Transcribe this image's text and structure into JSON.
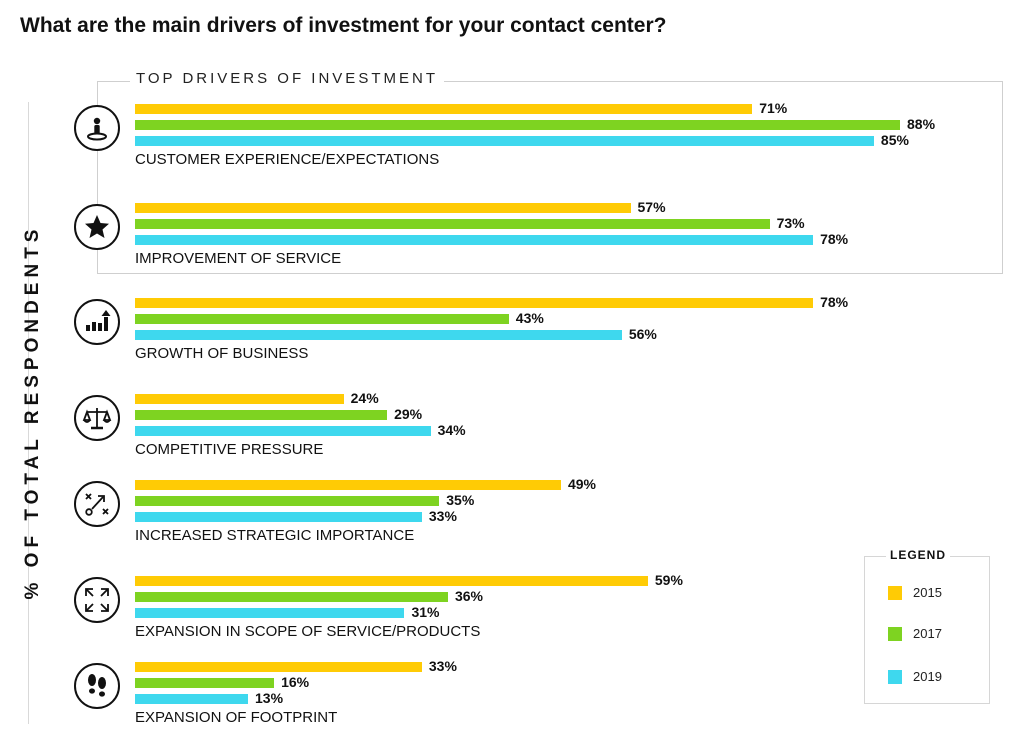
{
  "title": "What are the main drivers of investment for your contact center?",
  "highlight_box_label": "TOP DRIVERS OF INVESTMENT",
  "legend": {
    "title": "LEGEND",
    "items": [
      {
        "label": "2015",
        "color": "#FFCB05"
      },
      {
        "label": "2017",
        "color": "#7ED321"
      },
      {
        "label": "2019",
        "color": "#3ED8EE"
      }
    ]
  },
  "chart_data": {
    "type": "bar",
    "orientation": "horizontal",
    "ylabel": "% OF TOTAL RESPONDENTS",
    "categories": [
      "CUSTOMER EXPERIENCE/EXPECTATIONS",
      "IMPROVEMENT OF SERVICE",
      "GROWTH OF BUSINESS",
      "COMPETITIVE PRESSURE",
      "INCREASED STRATEGIC IMPORTANCE",
      "EXPANSION IN SCOPE OF SERVICE/PRODUCTS",
      "EXPANSION OF FOOTPRINT"
    ],
    "icons": [
      "person-pin-icon",
      "star-icon",
      "growth-chart-icon",
      "scales-icon",
      "strategy-icon",
      "expand-arrows-icon",
      "footprints-icon"
    ],
    "series": [
      {
        "name": "2015",
        "color": "#FFCB05",
        "values": [
          71,
          57,
          78,
          24,
          49,
          59,
          33
        ]
      },
      {
        "name": "2017",
        "color": "#7ED321",
        "values": [
          88,
          73,
          43,
          29,
          35,
          36,
          16
        ]
      },
      {
        "name": "2019",
        "color": "#3ED8EE",
        "values": [
          85,
          78,
          56,
          34,
          33,
          31,
          13
        ]
      }
    ],
    "value_suffix": "%",
    "xlim": [
      0,
      100
    ],
    "legend_position": "bottom-right",
    "grid": false
  }
}
